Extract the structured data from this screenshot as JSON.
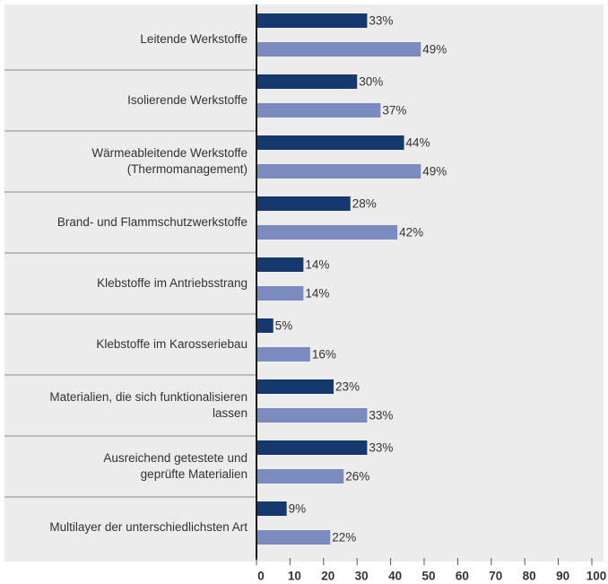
{
  "chart_data": {
    "type": "bar",
    "orientation": "horizontal",
    "categories": [
      "Leitende Werkstoffe",
      "Isolierende Werkstoffe",
      "Wärmeableitende Werkstoffe\n(Thermomanagement)",
      "Brand- und Flammschutzwerkstoffe",
      "Klebstoffe im Antriebsstrang",
      "Klebstoffe im Karosseriebau",
      "Materialien, die sich funktionalisieren\nlassen",
      "Ausreichend getestete und\ngeprüfte Materialien",
      "Multilayer der unterschiedlichsten Art"
    ],
    "series": [
      {
        "color": "#15386e",
        "values": [
          33,
          30,
          44,
          28,
          14,
          5,
          23,
          33,
          9
        ],
        "value_labels": [
          "33%",
          "30%",
          "44%",
          "28%",
          "14%",
          "5%",
          "23%",
          "33%",
          "9%"
        ]
      },
      {
        "color": "#7a8bbf",
        "values": [
          49,
          37,
          49,
          42,
          14,
          16,
          33,
          26,
          22
        ],
        "value_labels": [
          "49%",
          "37%",
          "49%",
          "42%",
          "14%",
          "16%",
          "33%",
          "26%",
          "22%"
        ]
      }
    ],
    "xlim": [
      0,
      100
    ],
    "xticks": [
      0,
      10,
      20,
      30,
      40,
      50,
      60,
      70,
      80,
      90,
      100
    ]
  }
}
